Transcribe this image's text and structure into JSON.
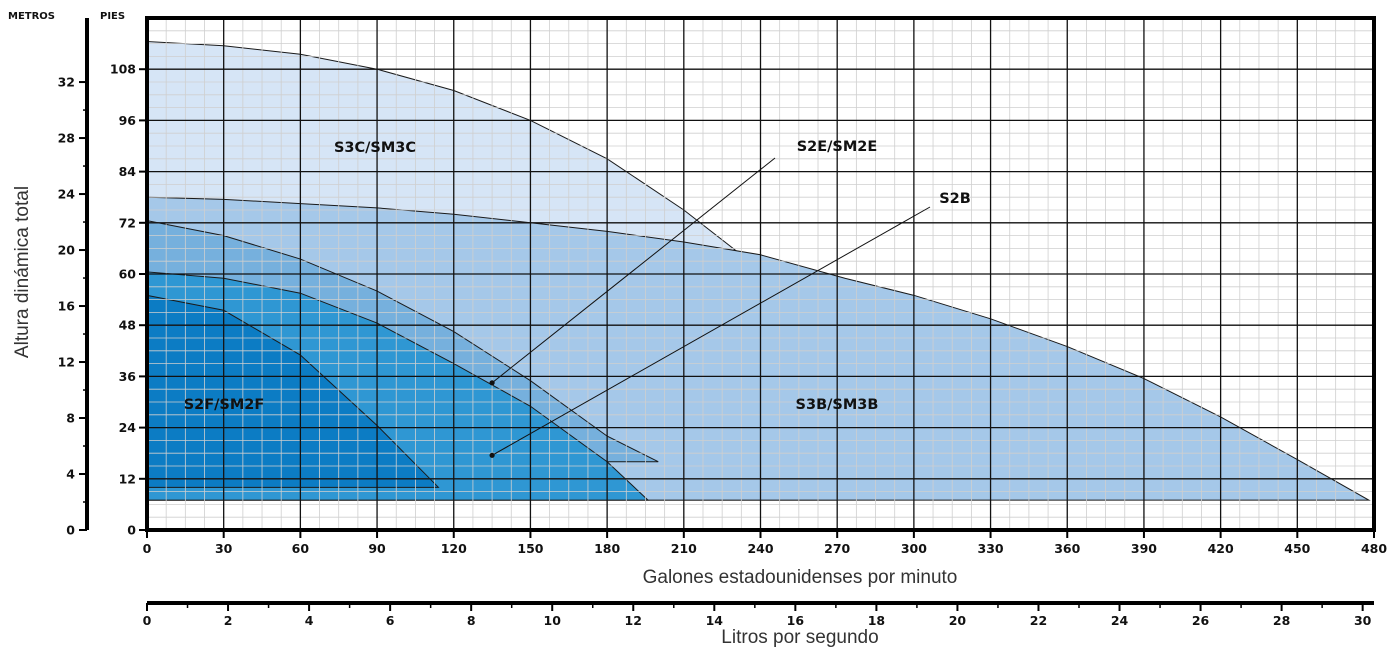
{
  "chart_data": {
    "type": "area",
    "title": "",
    "xlabel": "Galones estadounidenses por minuto",
    "x2label": "Litros por segundo",
    "ylabel": "Altura dinámica total",
    "y_unit_left": "METROS",
    "y_unit_right": "PIES",
    "xlim": [
      0,
      480
    ],
    "ylim": [
      0,
      120
    ],
    "x_ticks": [
      0,
      30,
      60,
      90,
      120,
      150,
      180,
      210,
      240,
      270,
      300,
      330,
      360,
      390,
      420,
      450,
      480
    ],
    "x2lim": [
      0,
      30.28
    ],
    "x2_ticks": [
      0,
      2,
      4,
      6,
      8,
      10,
      12,
      14,
      16,
      18,
      20,
      22,
      24,
      26,
      28,
      30
    ],
    "y_ticks_feet": [
      0,
      12,
      24,
      36,
      48,
      60,
      72,
      84,
      96,
      108
    ],
    "y_ticks_meters": [
      0,
      4,
      8,
      12,
      16,
      20,
      24,
      28,
      32
    ],
    "grid": true,
    "series": [
      {
        "name": "S3C/SM3C",
        "color": "#d6e5f6",
        "x": [
          0,
          30,
          60,
          90,
          120,
          150,
          180,
          210,
          240,
          270
        ],
        "y": [
          114.5,
          113.5,
          111.5,
          108,
          103,
          96,
          87,
          75,
          61,
          46
        ],
        "min_y": 7
      },
      {
        "name": "S3B/SM3B",
        "color": "#a5c8e9",
        "x": [
          0,
          30,
          60,
          90,
          120,
          150,
          180,
          210,
          240,
          273,
          300,
          330,
          360,
          390,
          420,
          450,
          478
        ],
        "y": [
          78,
          77.5,
          76.5,
          75.5,
          74,
          72,
          70,
          67.5,
          64.5,
          59,
          55,
          49.5,
          43,
          35.5,
          26.5,
          16.5,
          7
        ],
        "min_y": 7
      },
      {
        "name": "S2E/SM2E",
        "color": "#76b0dd",
        "x": [
          0,
          30,
          60,
          90,
          120,
          150,
          180,
          200
        ],
        "y": [
          72.5,
          69,
          63.5,
          56,
          46.5,
          35,
          22,
          16
        ],
        "min_y": 16
      },
      {
        "name": "S2B",
        "color": "#2f97d3",
        "x": [
          0,
          30,
          60,
          90,
          120,
          150,
          180,
          196
        ],
        "y": [
          60.5,
          59,
          55.5,
          48.5,
          39,
          29,
          16,
          7
        ],
        "min_y": 7
      },
      {
        "name": "S2F/SM2F",
        "color": "#0c7cc4",
        "x": [
          0,
          30,
          60,
          90,
          114
        ],
        "y": [
          55,
          51.5,
          41,
          24.5,
          10
        ],
        "min_y": 10
      }
    ],
    "labels": [
      "S3C/SM3C",
      "S3B/SM3B",
      "S2E/SM2E",
      "S2B",
      "S2F/SM2F"
    ]
  }
}
